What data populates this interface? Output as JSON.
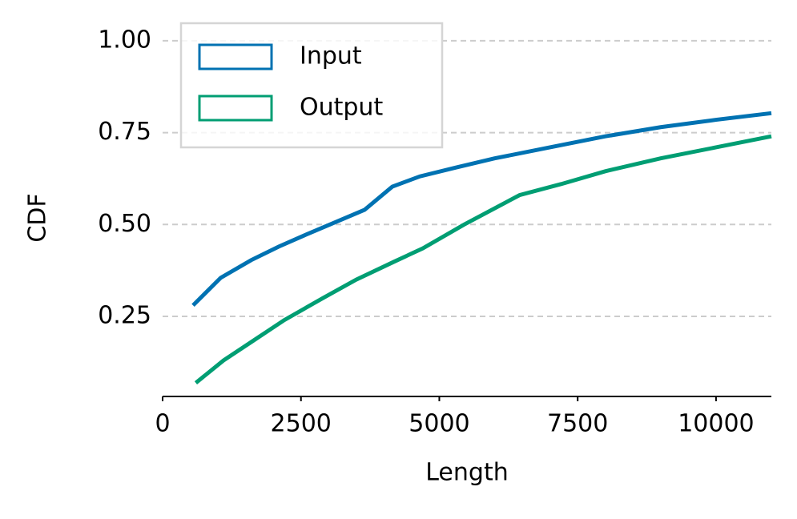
{
  "chart_data": {
    "type": "line",
    "x_label": "Length",
    "y_label": "CDF",
    "series": [
      {
        "name": "Input",
        "color": "#0072b2",
        "x": [
          550,
          1050,
          1600,
          2100,
          2600,
          3100,
          3650,
          4150,
          4650,
          5300,
          6000,
          7000,
          8000,
          9000,
          10000,
          11000
        ],
        "values": [
          0.28,
          0.355,
          0.403,
          0.44,
          0.473,
          0.505,
          0.54,
          0.603,
          0.631,
          0.655,
          0.68,
          0.71,
          0.74,
          0.765,
          0.785,
          0.803
        ]
      },
      {
        "name": "Output",
        "color": "#009e73",
        "x": [
          600,
          1100,
          1600,
          2200,
          2900,
          3500,
          4200,
          4700,
          5450,
          6450,
          7200,
          8000,
          9000,
          10000,
          11000
        ],
        "values": [
          0.069,
          0.13,
          0.18,
          0.24,
          0.3,
          0.35,
          0.4,
          0.435,
          0.5,
          0.58,
          0.61,
          0.645,
          0.68,
          0.71,
          0.74
        ]
      }
    ],
    "xlim": [
      0,
      11000
    ],
    "xticks": [
      0,
      2500,
      5000,
      7500,
      10000
    ],
    "ylim": [
      0.032,
      1.05
    ],
    "yticks": [
      0.25,
      {
        "value": 0.5,
        "label": "0.50"
      },
      0.75,
      {
        "value": 1,
        "label": "1.00"
      }
    ],
    "grid": true,
    "legend": "upper left"
  }
}
